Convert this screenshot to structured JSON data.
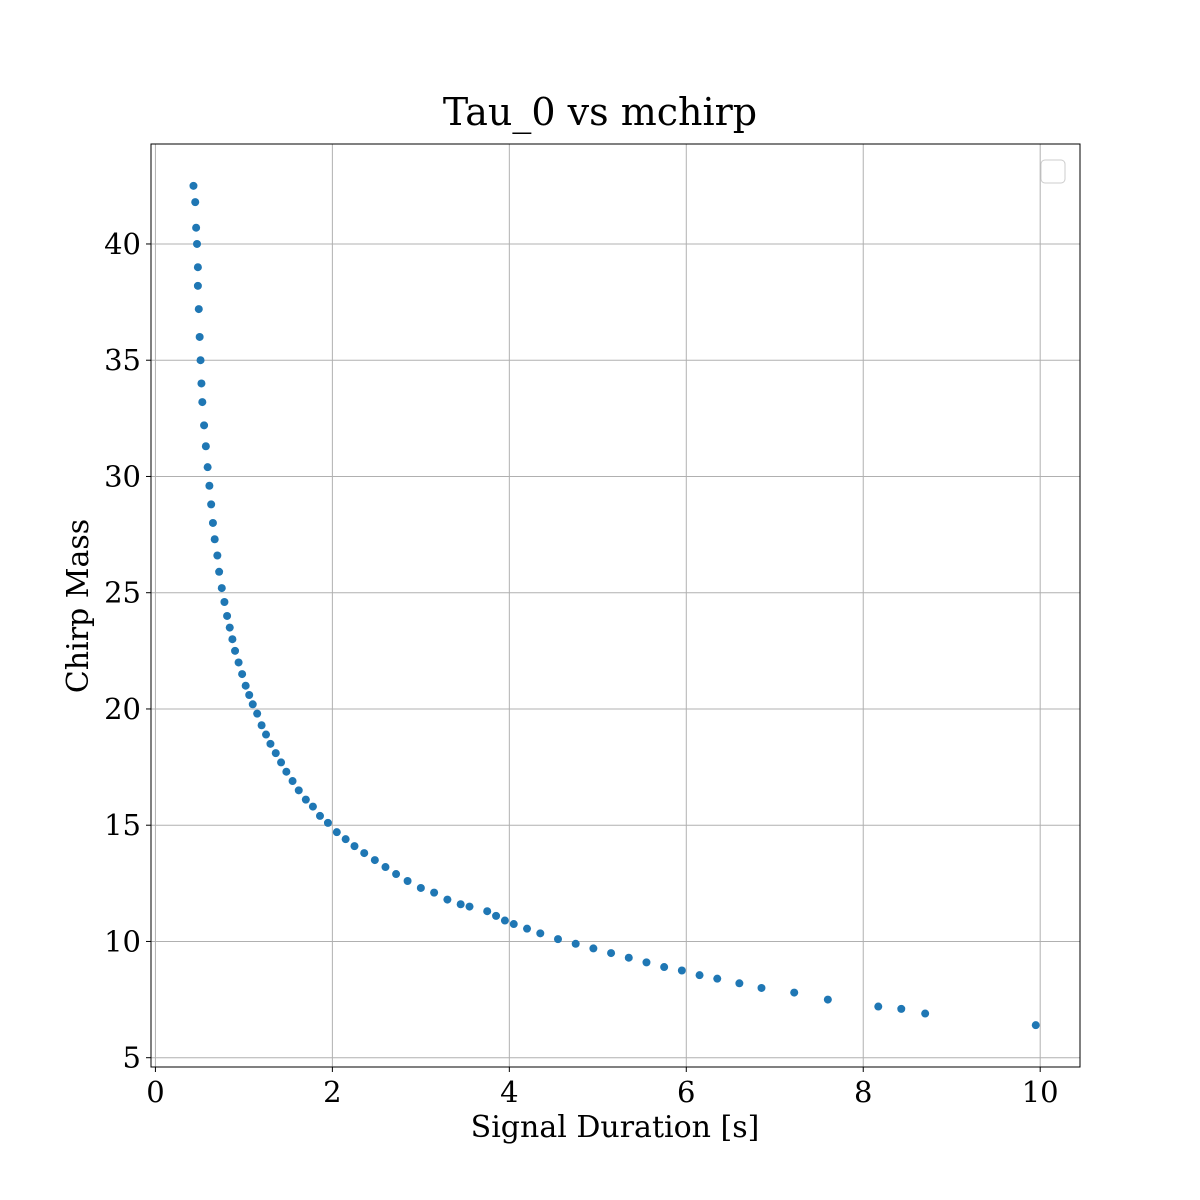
{
  "chart_data": {
    "type": "scatter",
    "title": "Tau_0 vs mchirp",
    "xlabel": "Signal Duration [s]",
    "ylabel": "Chirp Mass",
    "xlim": [
      -0.05,
      10.45
    ],
    "ylim": [
      4.6,
      44.3
    ],
    "xticks": [
      0,
      2,
      4,
      6,
      8,
      10
    ],
    "xtick_labels": [
      "0",
      "2",
      "4",
      "6",
      "8",
      "10"
    ],
    "yticks": [
      5,
      10,
      15,
      20,
      25,
      30,
      35,
      40
    ],
    "ytick_labels": [
      "5",
      "10",
      "15",
      "20",
      "25",
      "30",
      "35",
      "40"
    ],
    "grid": true,
    "legend": {
      "placement": "top-right",
      "entries": []
    },
    "marker_color": "#1f77b4",
    "series": [
      {
        "x": [
          0.43,
          0.45,
          0.46,
          0.47,
          0.48,
          0.48,
          0.49,
          0.5,
          0.51,
          0.52,
          0.53,
          0.55,
          0.57,
          0.59,
          0.61,
          0.63,
          0.65,
          0.67,
          0.7,
          0.72,
          0.75,
          0.78,
          0.81,
          0.84,
          0.87,
          0.9,
          0.94,
          0.98,
          1.02,
          1.06,
          1.1,
          1.15,
          1.2,
          1.25,
          1.3,
          1.36,
          1.42,
          1.48,
          1.55,
          1.62,
          1.7,
          1.78,
          1.86,
          1.95,
          2.05,
          2.15,
          2.25,
          2.36,
          2.48,
          2.6,
          2.72,
          2.85,
          3.0,
          3.15,
          3.3,
          3.45,
          3.55,
          3.75,
          3.85,
          3.95,
          4.05,
          4.2,
          4.35,
          4.55,
          4.75,
          4.95,
          5.15,
          5.35,
          5.55,
          5.75,
          5.95,
          6.15,
          6.35,
          6.6,
          6.85,
          7.22,
          7.6,
          8.17,
          8.43,
          8.7,
          9.95
        ],
        "y": [
          42.5,
          41.8,
          40.7,
          40.0,
          39.0,
          38.2,
          37.2,
          36.0,
          35.0,
          34.0,
          33.2,
          32.2,
          31.3,
          30.4,
          29.6,
          28.8,
          28.0,
          27.3,
          26.6,
          25.9,
          25.2,
          24.6,
          24.0,
          23.5,
          23.0,
          22.5,
          22.0,
          21.5,
          21.0,
          20.6,
          20.2,
          19.8,
          19.3,
          18.9,
          18.5,
          18.1,
          17.7,
          17.3,
          16.9,
          16.5,
          16.1,
          15.8,
          15.4,
          15.1,
          14.7,
          14.4,
          14.1,
          13.8,
          13.5,
          13.2,
          12.9,
          12.6,
          12.3,
          12.1,
          11.8,
          11.6,
          11.5,
          11.3,
          11.1,
          10.9,
          10.75,
          10.55,
          10.35,
          10.1,
          9.9,
          9.7,
          9.5,
          9.3,
          9.1,
          8.9,
          8.75,
          8.55,
          8.4,
          8.2,
          8.0,
          7.8,
          7.5,
          7.2,
          7.1,
          6.9,
          6.4
        ]
      }
    ]
  }
}
